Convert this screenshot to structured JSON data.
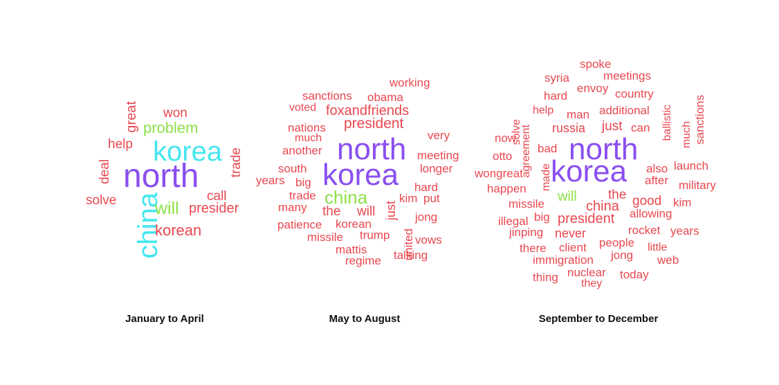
{
  "colors": {
    "red": "#e8474f",
    "purple": "#8a4ff0",
    "cyan": "#45e6ee",
    "green": "#8ee04a"
  },
  "clouds": [
    {
      "caption": "January to April",
      "words": [
        {
          "text": "north",
          "color": "purple"
        },
        {
          "text": "korea",
          "color": "cyan"
        },
        {
          "text": "china",
          "color": "cyan"
        },
        {
          "text": "problem",
          "color": "green"
        },
        {
          "text": "will",
          "color": "green"
        },
        {
          "text": "won",
          "color": "red"
        },
        {
          "text": "great",
          "color": "red"
        },
        {
          "text": "help",
          "color": "red"
        },
        {
          "text": "deal",
          "color": "red"
        },
        {
          "text": "trade",
          "color": "red"
        },
        {
          "text": "call",
          "color": "red"
        },
        {
          "text": "solve",
          "color": "red"
        },
        {
          "text": "presider",
          "color": "red"
        },
        {
          "text": "korean",
          "color": "red"
        }
      ]
    },
    {
      "caption": "May to August",
      "words": [
        {
          "text": "working",
          "color": "red"
        },
        {
          "text": "sanctions",
          "color": "red"
        },
        {
          "text": "obama",
          "color": "red"
        },
        {
          "text": "voted",
          "color": "red"
        },
        {
          "text": "foxandfriends",
          "color": "red"
        },
        {
          "text": "president",
          "color": "red"
        },
        {
          "text": "nations",
          "color": "red"
        },
        {
          "text": "much",
          "color": "red"
        },
        {
          "text": "very",
          "color": "red"
        },
        {
          "text": "another",
          "color": "red"
        },
        {
          "text": "north",
          "color": "purple"
        },
        {
          "text": "meeting",
          "color": "red"
        },
        {
          "text": "south",
          "color": "red"
        },
        {
          "text": "korea",
          "color": "purple"
        },
        {
          "text": "longer",
          "color": "red"
        },
        {
          "text": "years",
          "color": "red"
        },
        {
          "text": "big",
          "color": "red"
        },
        {
          "text": "china",
          "color": "green"
        },
        {
          "text": "hard",
          "color": "red"
        },
        {
          "text": "trade",
          "color": "red"
        },
        {
          "text": "kim",
          "color": "red"
        },
        {
          "text": "put",
          "color": "red"
        },
        {
          "text": "many",
          "color": "red"
        },
        {
          "text": "the",
          "color": "red"
        },
        {
          "text": "will",
          "color": "red"
        },
        {
          "text": "just",
          "color": "red"
        },
        {
          "text": "jong",
          "color": "red"
        },
        {
          "text": "patience",
          "color": "red"
        },
        {
          "text": "korean",
          "color": "red"
        },
        {
          "text": "united",
          "color": "red"
        },
        {
          "text": "missile",
          "color": "red"
        },
        {
          "text": "trump",
          "color": "red"
        },
        {
          "text": "vows",
          "color": "red"
        },
        {
          "text": "mattis",
          "color": "red"
        },
        {
          "text": "regime",
          "color": "red"
        },
        {
          "text": "talking",
          "color": "red"
        }
      ]
    },
    {
      "caption": "September to December",
      "words": [
        {
          "text": "spoke",
          "color": "red"
        },
        {
          "text": "syria",
          "color": "red"
        },
        {
          "text": "meetings",
          "color": "red"
        },
        {
          "text": "envoy",
          "color": "red"
        },
        {
          "text": "hard",
          "color": "red"
        },
        {
          "text": "country",
          "color": "red"
        },
        {
          "text": "sanctions",
          "color": "red"
        },
        {
          "text": "solve",
          "color": "red"
        },
        {
          "text": "help",
          "color": "red"
        },
        {
          "text": "man",
          "color": "red"
        },
        {
          "text": "additional",
          "color": "red"
        },
        {
          "text": "agreement",
          "color": "red"
        },
        {
          "text": "russia",
          "color": "red"
        },
        {
          "text": "just",
          "color": "red"
        },
        {
          "text": "can",
          "color": "red"
        },
        {
          "text": "ballistic",
          "color": "red"
        },
        {
          "text": "much",
          "color": "red"
        },
        {
          "text": "now",
          "color": "red"
        },
        {
          "text": "north",
          "color": "purple"
        },
        {
          "text": "bad",
          "color": "red"
        },
        {
          "text": "otto",
          "color": "red"
        },
        {
          "text": "launch",
          "color": "red"
        },
        {
          "text": "also",
          "color": "red"
        },
        {
          "text": "wongreat",
          "color": "red"
        },
        {
          "text": "made",
          "color": "red"
        },
        {
          "text": "korea",
          "color": "purple"
        },
        {
          "text": "after",
          "color": "red"
        },
        {
          "text": "military",
          "color": "red"
        },
        {
          "text": "happen",
          "color": "red"
        },
        {
          "text": "will",
          "color": "green"
        },
        {
          "text": "the",
          "color": "red"
        },
        {
          "text": "good",
          "color": "red"
        },
        {
          "text": "kim",
          "color": "red"
        },
        {
          "text": "missile",
          "color": "red"
        },
        {
          "text": "china",
          "color": "red"
        },
        {
          "text": "allowing",
          "color": "red"
        },
        {
          "text": "illegal",
          "color": "red"
        },
        {
          "text": "big",
          "color": "red"
        },
        {
          "text": "president",
          "color": "red"
        },
        {
          "text": "rocket",
          "color": "red"
        },
        {
          "text": "years",
          "color": "red"
        },
        {
          "text": "jinping",
          "color": "red"
        },
        {
          "text": "never",
          "color": "red"
        },
        {
          "text": "people",
          "color": "red"
        },
        {
          "text": "little",
          "color": "red"
        },
        {
          "text": "there",
          "color": "red"
        },
        {
          "text": "client",
          "color": "red"
        },
        {
          "text": "jong",
          "color": "red"
        },
        {
          "text": "web",
          "color": "red"
        },
        {
          "text": "immigration",
          "color": "red"
        },
        {
          "text": "nuclear",
          "color": "red"
        },
        {
          "text": "today",
          "color": "red"
        },
        {
          "text": "thing",
          "color": "red"
        },
        {
          "text": "they",
          "color": "red"
        }
      ]
    }
  ]
}
